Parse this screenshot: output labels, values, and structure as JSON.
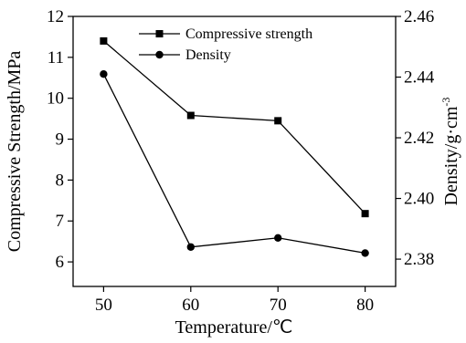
{
  "chart_data": {
    "type": "line",
    "x": [
      50,
      60,
      70,
      80
    ],
    "xlabel": "Temperature/℃",
    "xlim": [
      46.5,
      83.5
    ],
    "xticks": [
      "50",
      "60",
      "70",
      "80"
    ],
    "ylabel_left": "Compressive Strength/MPa",
    "ylim_left": [
      5.4,
      12
    ],
    "yticks_left": [
      "6",
      "7",
      "8",
      "9",
      "10",
      "11",
      "12"
    ],
    "ylabel_right": "Density/g·cm",
    "ylabel_right_superscript": "-3",
    "ylim_right": [
      2.371,
      2.46
    ],
    "yticks_right": [
      "2.38",
      "2.40",
      "2.42",
      "2.44",
      "2.46"
    ],
    "grid": false,
    "legend_position": "top-center",
    "series": [
      {
        "name": "Compressive strength",
        "axis": "left",
        "marker": "square",
        "color": "#000000",
        "values": [
          11.4,
          9.58,
          9.45,
          7.18
        ]
      },
      {
        "name": "Density",
        "axis": "right",
        "marker": "circle",
        "color": "#000000",
        "values": [
          2.441,
          2.384,
          2.387,
          2.382
        ]
      }
    ]
  }
}
